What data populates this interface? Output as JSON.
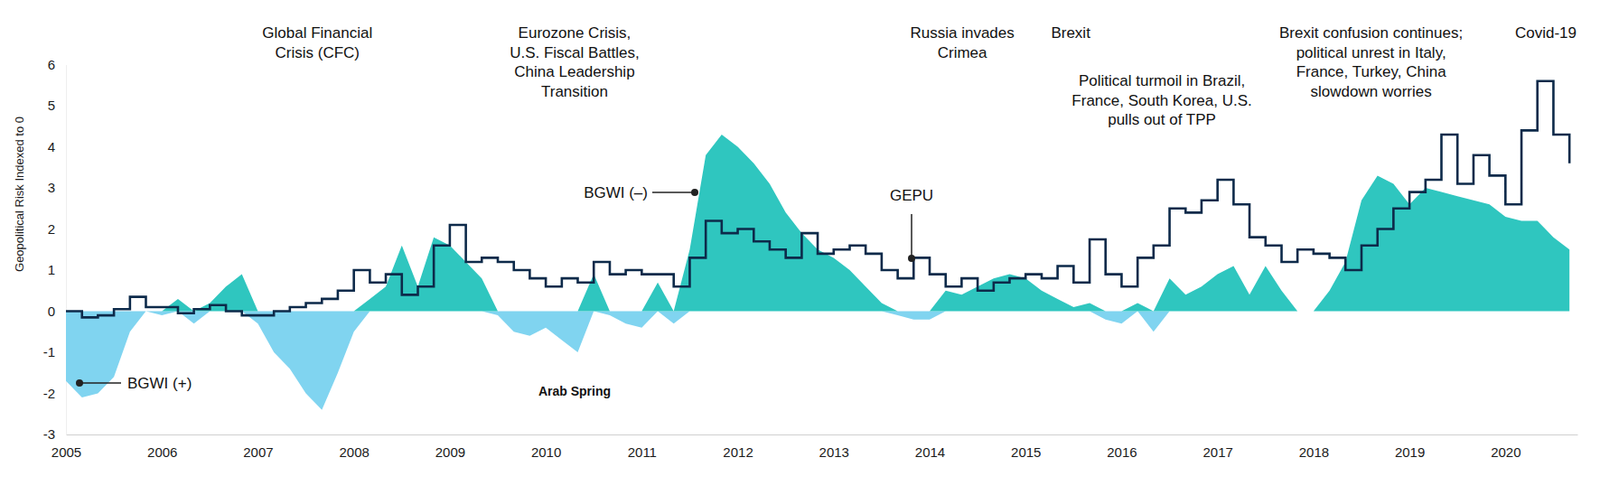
{
  "chart_data": {
    "type": "area",
    "y_label": "Geopolitical Risk Indexed to 0",
    "xlim": [
      2005,
      2020.75
    ],
    "xticks": [
      2005,
      2006,
      2007,
      2008,
      2009,
      2010,
      2011,
      2012,
      2013,
      2014,
      2015,
      2016,
      2017,
      2018,
      2019,
      2020
    ],
    "ylim": [
      -3,
      6
    ],
    "yticks": [
      -3,
      -2,
      -1,
      0,
      1,
      2,
      3,
      4,
      5,
      6
    ],
    "grid": false,
    "x": [
      2005,
      2005.167,
      2005.333,
      2005.5,
      2005.667,
      2005.833,
      2006,
      2006.167,
      2006.333,
      2006.5,
      2006.667,
      2006.833,
      2007,
      2007.167,
      2007.333,
      2007.5,
      2007.667,
      2007.833,
      2008,
      2008.167,
      2008.333,
      2008.5,
      2008.667,
      2008.833,
      2009,
      2009.167,
      2009.333,
      2009.5,
      2009.667,
      2009.833,
      2010,
      2010.167,
      2010.333,
      2010.5,
      2010.667,
      2010.833,
      2011,
      2011.167,
      2011.333,
      2011.5,
      2011.667,
      2011.833,
      2012,
      2012.167,
      2012.333,
      2012.5,
      2012.667,
      2012.833,
      2013,
      2013.167,
      2013.333,
      2013.5,
      2013.667,
      2013.833,
      2014,
      2014.167,
      2014.333,
      2014.5,
      2014.667,
      2014.833,
      2015,
      2015.167,
      2015.333,
      2015.5,
      2015.667,
      2015.833,
      2016,
      2016.167,
      2016.333,
      2016.5,
      2016.667,
      2016.833,
      2017,
      2017.167,
      2017.333,
      2017.5,
      2017.667,
      2017.833,
      2018,
      2018.167,
      2018.333,
      2018.5,
      2018.667,
      2018.833,
      2019,
      2019.167,
      2019.333,
      2019.5,
      2019.667,
      2019.833,
      2020,
      2020.167,
      2020.333,
      2020.5,
      2020.667
    ],
    "series": [
      {
        "name": "BGWI (+)",
        "type": "area",
        "color": "#80d4f0",
        "values": [
          -1.7,
          -2.1,
          -2.0,
          -1.6,
          -0.5,
          0,
          -0.1,
          0,
          -0.3,
          0,
          0,
          0,
          -0.3,
          -1.0,
          -1.4,
          -2.0,
          -2.4,
          -1.5,
          -0.5,
          0,
          0,
          0,
          0,
          0,
          0,
          0,
          0,
          -0.1,
          -0.5,
          -0.6,
          -0.4,
          -0.7,
          -1.0,
          0,
          -0.1,
          -0.3,
          -0.4,
          0,
          -0.3,
          0,
          0,
          0,
          0,
          0,
          0,
          0,
          0,
          0,
          0,
          0,
          0,
          0,
          -0.1,
          -0.2,
          -0.2,
          0,
          0,
          0,
          0,
          0,
          0,
          0,
          0,
          0,
          0,
          -0.2,
          -0.3,
          0,
          -0.5,
          0,
          0,
          0,
          0,
          0,
          0,
          0,
          0,
          0,
          0,
          0,
          0,
          0,
          0,
          0,
          0,
          0,
          0,
          0,
          0,
          0,
          0,
          0,
          0,
          0,
          0
        ]
      },
      {
        "name": "BGWI (–)",
        "type": "area",
        "color": "#2fc6bf",
        "values": [
          0,
          0,
          0,
          0,
          0,
          0,
          0,
          0.3,
          0,
          0.2,
          0.6,
          0.9,
          0,
          0,
          0,
          0,
          0,
          0,
          0,
          0.3,
          0.6,
          1.6,
          0.6,
          1.8,
          1.6,
          1.2,
          0.8,
          0,
          0,
          0,
          0,
          0,
          0,
          0.9,
          0,
          0,
          0,
          0.7,
          0,
          1.5,
          3.8,
          4.3,
          4.0,
          3.6,
          3.1,
          2.4,
          1.9,
          1.5,
          1.3,
          1.0,
          0.6,
          0.2,
          0,
          0,
          0,
          0.5,
          0.4,
          0.6,
          0.8,
          0.9,
          0.8,
          0.5,
          0.3,
          0.1,
          0.2,
          0,
          0,
          0.2,
          0,
          0.8,
          0.4,
          0.6,
          0.9,
          1.1,
          0.4,
          1.1,
          0.5,
          0,
          0,
          0.5,
          1.2,
          2.7,
          3.3,
          3.1,
          2.6,
          3.0,
          2.9,
          2.8,
          2.7,
          2.6,
          2.3,
          2.2,
          2.2,
          1.8,
          1.5
        ]
      },
      {
        "name": "GEPU",
        "type": "line",
        "line_style": "step",
        "color": "#0d2a4a",
        "values": [
          0,
          -0.15,
          -0.1,
          0.05,
          0.35,
          0.1,
          0.1,
          -0.05,
          0.05,
          0.15,
          0,
          -0.1,
          -0.1,
          0,
          0.1,
          0.2,
          0.3,
          0.5,
          1.0,
          0.7,
          0.9,
          0.4,
          0.6,
          1.6,
          2.1,
          1.2,
          1.3,
          1.2,
          1.0,
          0.8,
          0.6,
          0.8,
          0.7,
          1.2,
          0.9,
          1.0,
          0.9,
          0.9,
          0.6,
          1.3,
          2.2,
          1.9,
          2.0,
          1.7,
          1.5,
          1.3,
          1.9,
          1.4,
          1.5,
          1.6,
          1.4,
          1.0,
          0.8,
          1.3,
          0.9,
          0.6,
          0.8,
          0.5,
          0.7,
          0.8,
          0.9,
          0.8,
          1.1,
          0.7,
          1.75,
          0.9,
          0.6,
          1.3,
          1.6,
          2.5,
          2.4,
          2.7,
          3.2,
          2.6,
          1.8,
          1.6,
          1.2,
          1.5,
          1.4,
          1.3,
          1.0,
          1.6,
          2.0,
          2.5,
          2.9,
          3.2,
          4.3,
          3.1,
          3.8,
          3.3,
          2.6,
          4.4,
          5.6,
          4.3,
          3.6
        ]
      }
    ],
    "annotations": [
      {
        "lines": [
          "Global Financial",
          "Crisis (CFC)"
        ],
        "x": 2007.62,
        "y": 6.65
      },
      {
        "lines": [
          "Eurozone Crisis,",
          "U.S. Fiscal Battles,",
          "China Leadership",
          "Transition"
        ],
        "x": 2010.3,
        "y": 6.65
      },
      {
        "lines": [
          "Russia invades",
          "Crimea"
        ],
        "x": 2014.34,
        "y": 6.65
      },
      {
        "lines": [
          "Brexit"
        ],
        "x": 2015.47,
        "y": 6.65
      },
      {
        "lines": [
          "Political turmoil in Brazil,",
          "France, South Korea, U.S.",
          "pulls out of TPP"
        ],
        "x": 2016.42,
        "y": 5.48
      },
      {
        "lines": [
          "Brexit confusion continues;",
          "political unrest in Italy,",
          "France, Turkey, China",
          "slowdown worries"
        ],
        "x": 2018.6,
        "y": 6.65
      },
      {
        "lines": [
          "Covid-19"
        ],
        "x": 2020.42,
        "y": 6.65
      },
      {
        "lines": [
          "Arab Spring"
        ],
        "x": 2010.3,
        "y": -2.06
      }
    ]
  }
}
